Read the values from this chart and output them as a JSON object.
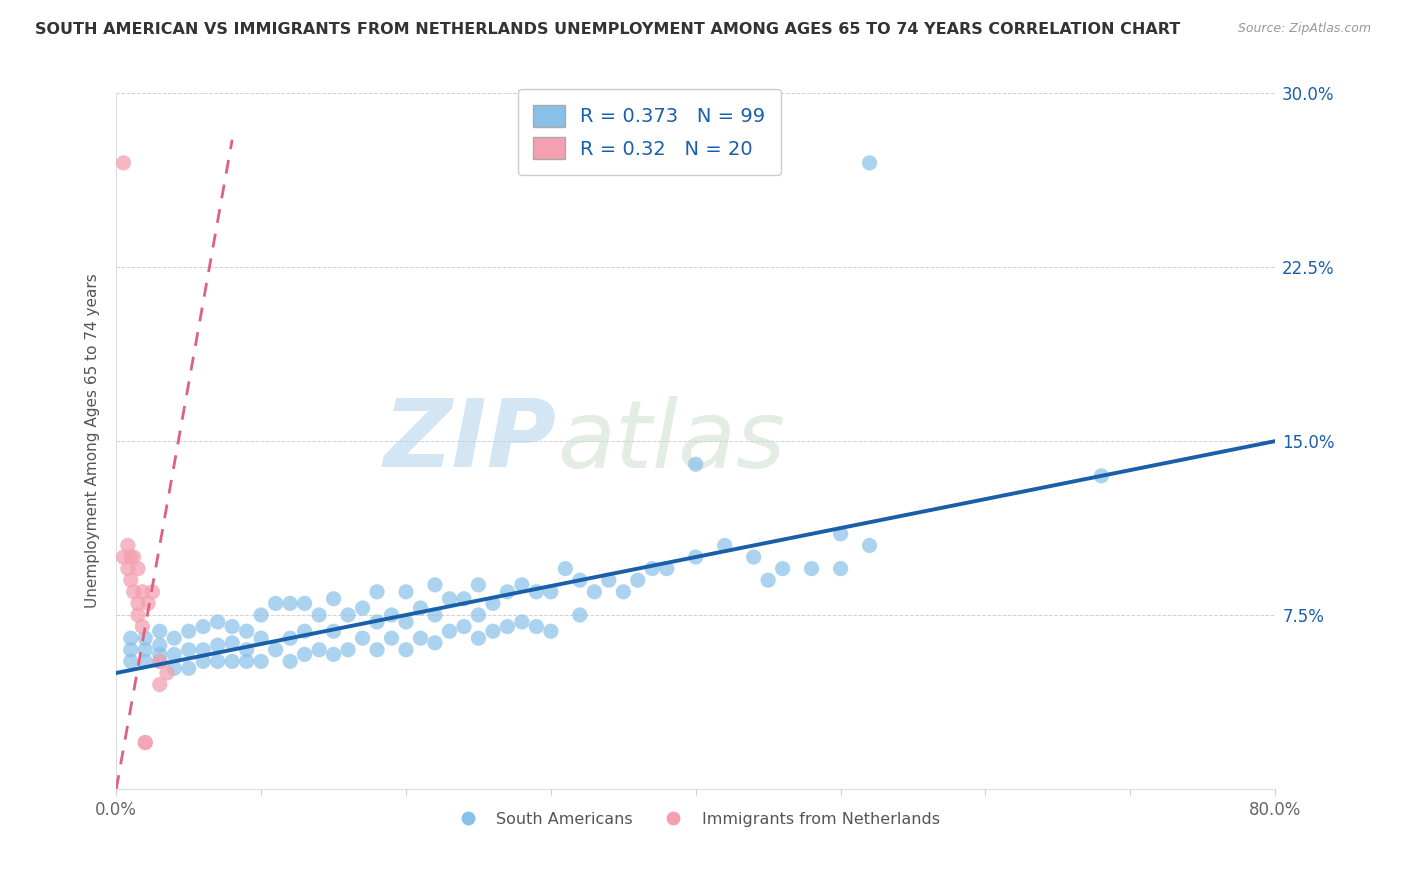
{
  "title": "SOUTH AMERICAN VS IMMIGRANTS FROM NETHERLANDS UNEMPLOYMENT AMONG AGES 65 TO 74 YEARS CORRELATION CHART",
  "source": "Source: ZipAtlas.com",
  "ylabel": "Unemployment Among Ages 65 to 74 years",
  "xlim": [
    0.0,
    0.8
  ],
  "ylim": [
    0.0,
    0.3
  ],
  "xticks": [
    0.0,
    0.1,
    0.2,
    0.3,
    0.4,
    0.5,
    0.6,
    0.7,
    0.8
  ],
  "xticklabels": [
    "0.0%",
    "",
    "",
    "",
    "",
    "",
    "",
    "",
    "80.0%"
  ],
  "ytick_positions": [
    0.0,
    0.075,
    0.15,
    0.225,
    0.3
  ],
  "ytick_labels": [
    "",
    "7.5%",
    "15.0%",
    "22.5%",
    "30.0%"
  ],
  "blue_color": "#88c0e8",
  "pink_color": "#f4a0b0",
  "blue_line_color": "#1a5faa",
  "pink_line_color": "#e06080",
  "R_blue": 0.373,
  "N_blue": 99,
  "R_pink": 0.32,
  "N_pink": 20,
  "watermark_zip": "ZIP",
  "watermark_atlas": "atlas",
  "blue_trend_x0": 0.0,
  "blue_trend_y0": 0.05,
  "blue_trend_x1": 0.8,
  "blue_trend_y1": 0.15,
  "pink_trend_x0": 0.0,
  "pink_trend_y0": 0.0,
  "pink_trend_x1": 0.08,
  "pink_trend_y1": 0.28,
  "blue_scatter_x": [
    0.01,
    0.01,
    0.01,
    0.02,
    0.02,
    0.02,
    0.03,
    0.03,
    0.03,
    0.03,
    0.04,
    0.04,
    0.04,
    0.05,
    0.05,
    0.05,
    0.06,
    0.06,
    0.06,
    0.07,
    0.07,
    0.07,
    0.08,
    0.08,
    0.08,
    0.09,
    0.09,
    0.09,
    0.1,
    0.1,
    0.1,
    0.11,
    0.11,
    0.12,
    0.12,
    0.12,
    0.13,
    0.13,
    0.13,
    0.14,
    0.14,
    0.15,
    0.15,
    0.15,
    0.16,
    0.16,
    0.17,
    0.17,
    0.18,
    0.18,
    0.18,
    0.19,
    0.19,
    0.2,
    0.2,
    0.2,
    0.21,
    0.21,
    0.22,
    0.22,
    0.22,
    0.23,
    0.23,
    0.24,
    0.24,
    0.25,
    0.25,
    0.25,
    0.26,
    0.26,
    0.27,
    0.27,
    0.28,
    0.28,
    0.29,
    0.29,
    0.3,
    0.3,
    0.31,
    0.32,
    0.32,
    0.33,
    0.34,
    0.35,
    0.36,
    0.37,
    0.38,
    0.4,
    0.42,
    0.44,
    0.45,
    0.46,
    0.48,
    0.5,
    0.5,
    0.52,
    0.4,
    0.68,
    0.52
  ],
  "blue_scatter_y": [
    0.055,
    0.06,
    0.065,
    0.055,
    0.06,
    0.065,
    0.055,
    0.058,
    0.062,
    0.068,
    0.052,
    0.058,
    0.065,
    0.052,
    0.06,
    0.068,
    0.055,
    0.06,
    0.07,
    0.055,
    0.062,
    0.072,
    0.055,
    0.063,
    0.07,
    0.055,
    0.06,
    0.068,
    0.055,
    0.065,
    0.075,
    0.06,
    0.08,
    0.055,
    0.065,
    0.08,
    0.058,
    0.068,
    0.08,
    0.06,
    0.075,
    0.058,
    0.068,
    0.082,
    0.06,
    0.075,
    0.065,
    0.078,
    0.06,
    0.072,
    0.085,
    0.065,
    0.075,
    0.06,
    0.072,
    0.085,
    0.065,
    0.078,
    0.063,
    0.075,
    0.088,
    0.068,
    0.082,
    0.07,
    0.082,
    0.065,
    0.075,
    0.088,
    0.068,
    0.08,
    0.07,
    0.085,
    0.072,
    0.088,
    0.07,
    0.085,
    0.068,
    0.085,
    0.095,
    0.075,
    0.09,
    0.085,
    0.09,
    0.085,
    0.09,
    0.095,
    0.095,
    0.1,
    0.105,
    0.1,
    0.09,
    0.095,
    0.095,
    0.095,
    0.11,
    0.105,
    0.14,
    0.135,
    0.27
  ],
  "pink_scatter_x": [
    0.005,
    0.005,
    0.008,
    0.008,
    0.01,
    0.01,
    0.012,
    0.012,
    0.015,
    0.015,
    0.015,
    0.018,
    0.018,
    0.02,
    0.02,
    0.022,
    0.025,
    0.03,
    0.03,
    0.035
  ],
  "pink_scatter_y": [
    0.27,
    0.1,
    0.105,
    0.095,
    0.1,
    0.09,
    0.1,
    0.085,
    0.095,
    0.08,
    0.075,
    0.085,
    0.07,
    0.02,
    0.02,
    0.08,
    0.085,
    0.055,
    0.045,
    0.05
  ]
}
